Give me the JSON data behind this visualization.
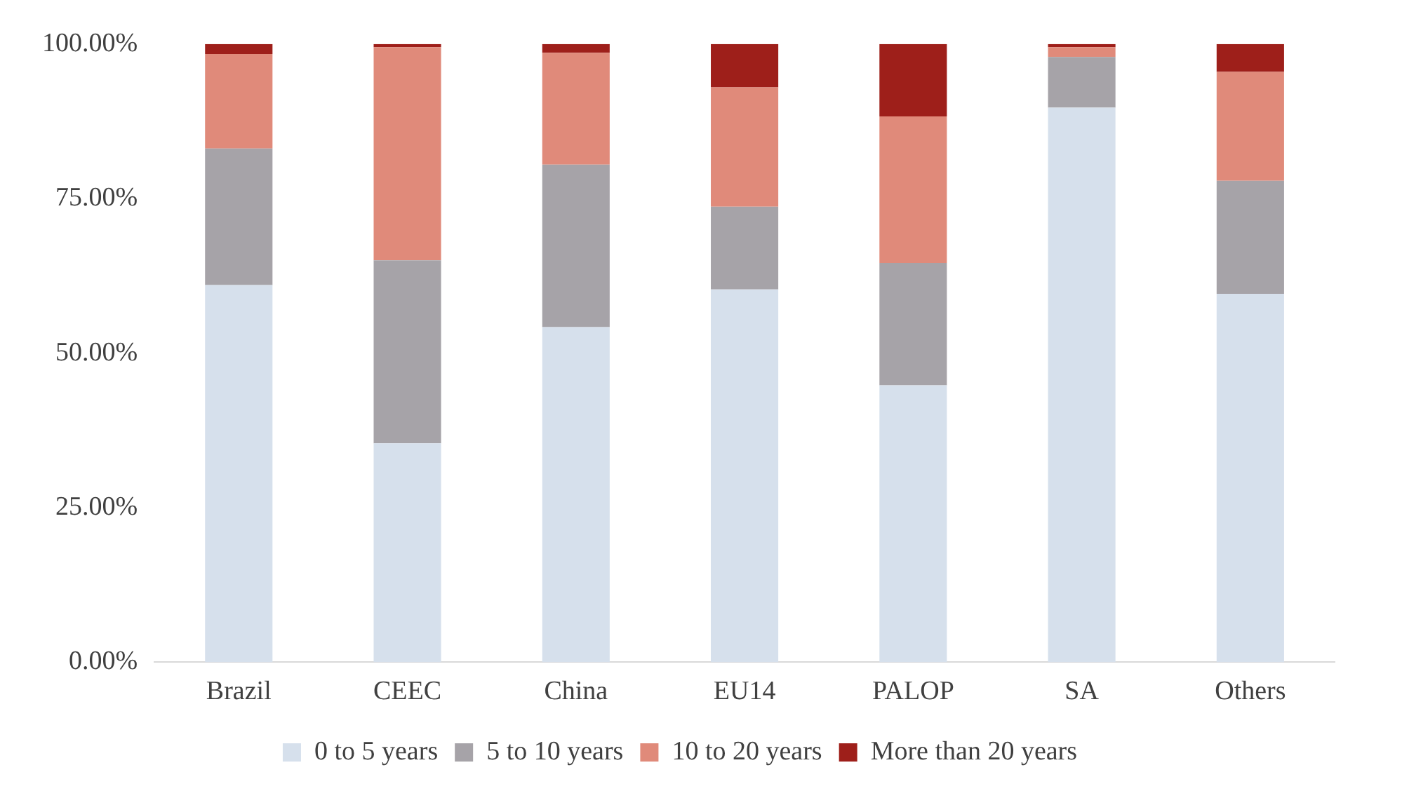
{
  "chart_data": {
    "type": "bar",
    "stacked": true,
    "categories": [
      "Brazil",
      "CEEC",
      "China",
      "EU14",
      "PALOP",
      "SA",
      "Others"
    ],
    "series": [
      {
        "name": "0 to 5 years",
        "color": "#d6e0ec",
        "values": [
          61.0,
          35.4,
          54.2,
          60.3,
          44.8,
          89.7,
          59.6
        ]
      },
      {
        "name": "5 to 10 years",
        "color": "#a6a3a8",
        "values": [
          22.1,
          29.6,
          26.3,
          13.4,
          19.8,
          8.2,
          18.3
        ]
      },
      {
        "name": "10 to 20 years",
        "color": "#e08a7a",
        "values": [
          15.3,
          34.5,
          18.1,
          19.3,
          23.7,
          1.6,
          17.6
        ]
      },
      {
        "name": "More than 20 years",
        "color": "#9e1f1a",
        "values": [
          1.6,
          0.5,
          1.4,
          7.0,
          11.7,
          0.5,
          4.5
        ]
      }
    ],
    "ylim": [
      0,
      100
    ],
    "yticks": [
      {
        "value": 0,
        "label": "0.00%"
      },
      {
        "value": 25,
        "label": "25.00%"
      },
      {
        "value": 50,
        "label": "50.00%"
      },
      {
        "value": 75,
        "label": "75.00%"
      },
      {
        "value": 100,
        "label": "100.00%"
      }
    ],
    "grid": false,
    "legend": "bottom"
  }
}
